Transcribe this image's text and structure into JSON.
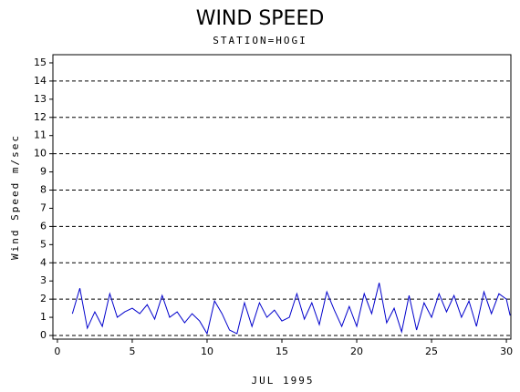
{
  "chart_data": {
    "type": "line",
    "title": "WIND SPEED",
    "subtitle": "STATION=HOGI",
    "x_label": "JUL 1995",
    "y_label": "Wind Speed m/sec",
    "xlim": [
      -0.3,
      30.3
    ],
    "xticks": [
      0,
      5,
      10,
      15,
      20,
      25,
      30
    ],
    "ylim": [
      -0.2,
      15.45
    ],
    "yticks": [
      0,
      1,
      2,
      3,
      4,
      5,
      6,
      7,
      8,
      9,
      10,
      11,
      12,
      13,
      14,
      15
    ],
    "grid_lines": [
      0,
      2,
      4,
      6,
      8,
      10,
      12,
      14
    ],
    "series": [
      {
        "color": "#0000cc",
        "x": [
          1,
          1.5,
          2,
          2.5,
          3,
          3.5,
          4,
          4.5,
          5,
          5.5,
          6,
          6.5,
          7,
          7.5,
          8,
          8.5,
          9,
          9.5,
          10,
          10.5,
          11,
          11.5,
          12,
          12.5,
          13,
          13.5,
          14,
          14.5,
          15,
          15.5,
          16,
          16.5,
          17,
          17.5,
          18,
          18.5,
          19,
          19.5,
          20,
          20.5,
          21,
          21.5,
          22,
          22.5,
          23,
          23.5,
          24,
          24.5,
          25,
          25.5,
          26,
          26.5,
          27,
          27.5,
          28,
          28.5,
          29,
          29.5,
          30,
          30.25
        ],
        "values": [
          1.2,
          2.6,
          0.4,
          1.3,
          0.5,
          2.3,
          1.0,
          1.3,
          1.5,
          1.2,
          1.7,
          0.9,
          2.2,
          1.0,
          1.3,
          0.7,
          1.2,
          0.8,
          0.1,
          1.9,
          1.2,
          0.3,
          0.1,
          1.8,
          0.5,
          1.8,
          1.0,
          1.4,
          0.8,
          1.0,
          2.3,
          0.9,
          1.8,
          0.6,
          2.4,
          1.4,
          0.5,
          1.6,
          0.5,
          2.3,
          1.2,
          2.9,
          0.7,
          1.5,
          0.2,
          2.2,
          0.3,
          1.8,
          1.0,
          2.3,
          1.3,
          2.2,
          1.0,
          1.9,
          0.5,
          2.4,
          1.2,
          2.3,
          2.0,
          1.1
        ]
      }
    ]
  }
}
